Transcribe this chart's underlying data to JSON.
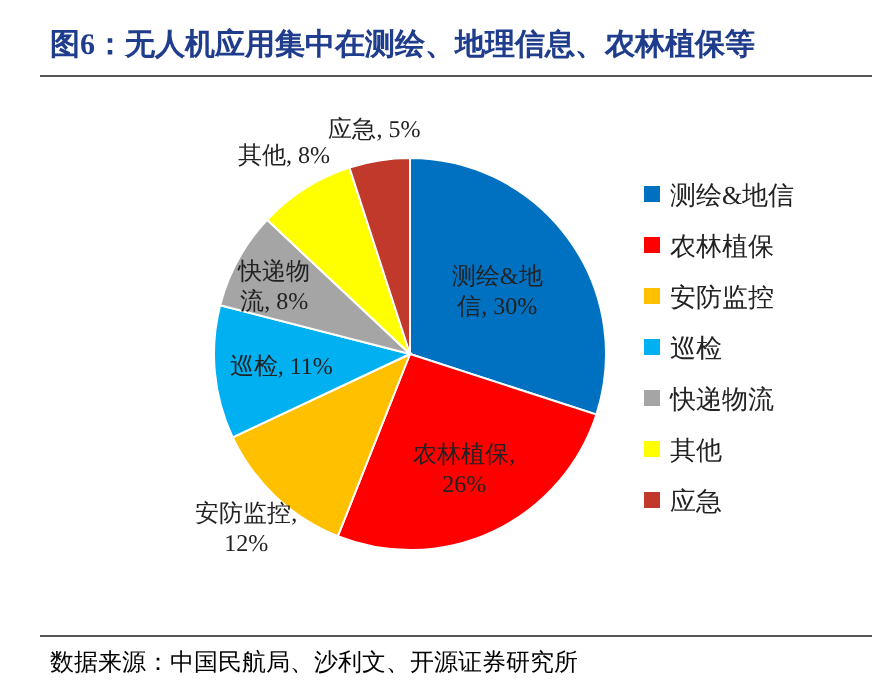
{
  "chart_data": {
    "type": "pie",
    "title": "图6：无人机应用集中在测绘、地理信息、农林植保等",
    "categories": [
      "测绘&地信",
      "农林植保",
      "安防监控",
      "巡检",
      "快递物流",
      "其他",
      "应急"
    ],
    "values": [
      30,
      26,
      12,
      11,
      8,
      8,
      5
    ],
    "colors": [
      "#0070c0",
      "#ff0000",
      "#ffc000",
      "#00b0f0",
      "#a5a5a5",
      "#ffff00",
      "#c0392b"
    ],
    "legend": "right",
    "value_labels": [
      "测绘&地信, 30%",
      "农林植保, 26%",
      "安防监控, 12%",
      "巡检, 11%",
      "快递物流, 8%",
      "其他, 8%",
      "应急, 5%"
    ],
    "annotations": [
      "数据来源：中国民航局、沙利文、开源证券研究所"
    ]
  }
}
